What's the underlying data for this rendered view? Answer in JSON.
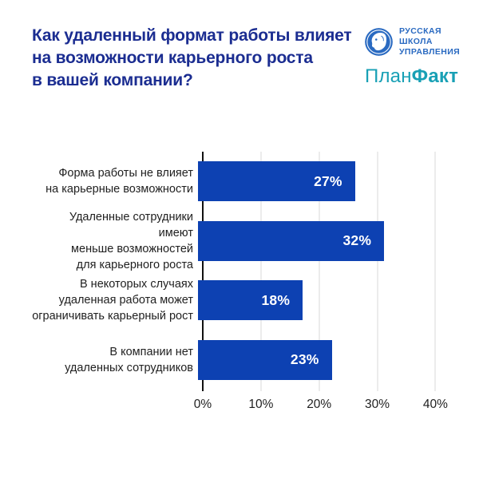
{
  "header": {
    "title": "Как удаленный формат работы влияет\nна возможности карьерного роста\nв вашей компании?",
    "logos": {
      "rsu": {
        "text": "РУССКАЯ\nШКОЛА\nУПРАВЛЕНИЯ",
        "icon": "face-profile-in-circle",
        "color": "#2a6ac1"
      },
      "planfact": {
        "regular": "План",
        "bold": "Факт",
        "color": "#18a0b5"
      }
    }
  },
  "colors": {
    "title": "#1b2d91",
    "bar": "#0d41b2",
    "grid": "#d9d9d9",
    "axis": "#111111",
    "text": "#1f1f1f",
    "value_label": "#ffffff",
    "background": "#ffffff"
  },
  "chart_data": {
    "type": "bar",
    "orientation": "horizontal",
    "title": "Как удаленный формат работы влияет на возможности карьерного роста в вашей компании?",
    "categories": [
      "Форма работы не влияет на карьерные возможности",
      "Удаленные сотрудники имеют меньше возможностей для карьерного роста",
      "В некоторых случаях удаленная работа может ограничивать карьерный рост",
      "В компании нет удаленных сотрудников"
    ],
    "values": [
      27,
      32,
      18,
      23
    ],
    "items": [
      {
        "label": "Форма работы не влияет\nна карьерные возможности",
        "value": 27,
        "value_label": "27%"
      },
      {
        "label": "Удаленные сотрудники имеют\nменьше возможностей\nдля карьерного роста",
        "value": 32,
        "value_label": "32%"
      },
      {
        "label": "В некоторых случаях\nудаленная работа может\nограничивать карьерный рост",
        "value": 18,
        "value_label": "18%"
      },
      {
        "label": "В компании нет\nудаленных сотрудников",
        "value": 23,
        "value_label": "23%"
      }
    ],
    "x_ticks": [
      0,
      10,
      20,
      30,
      40
    ],
    "x_tick_labels": [
      "0%",
      "10%",
      "20%",
      "30%",
      "40%"
    ],
    "xlim": [
      0,
      42
    ],
    "xlabel": "",
    "ylabel": "",
    "grid": "vertical",
    "legend": "none",
    "bar_color": "#0d41b2",
    "value_label_color": "#ffffff"
  }
}
